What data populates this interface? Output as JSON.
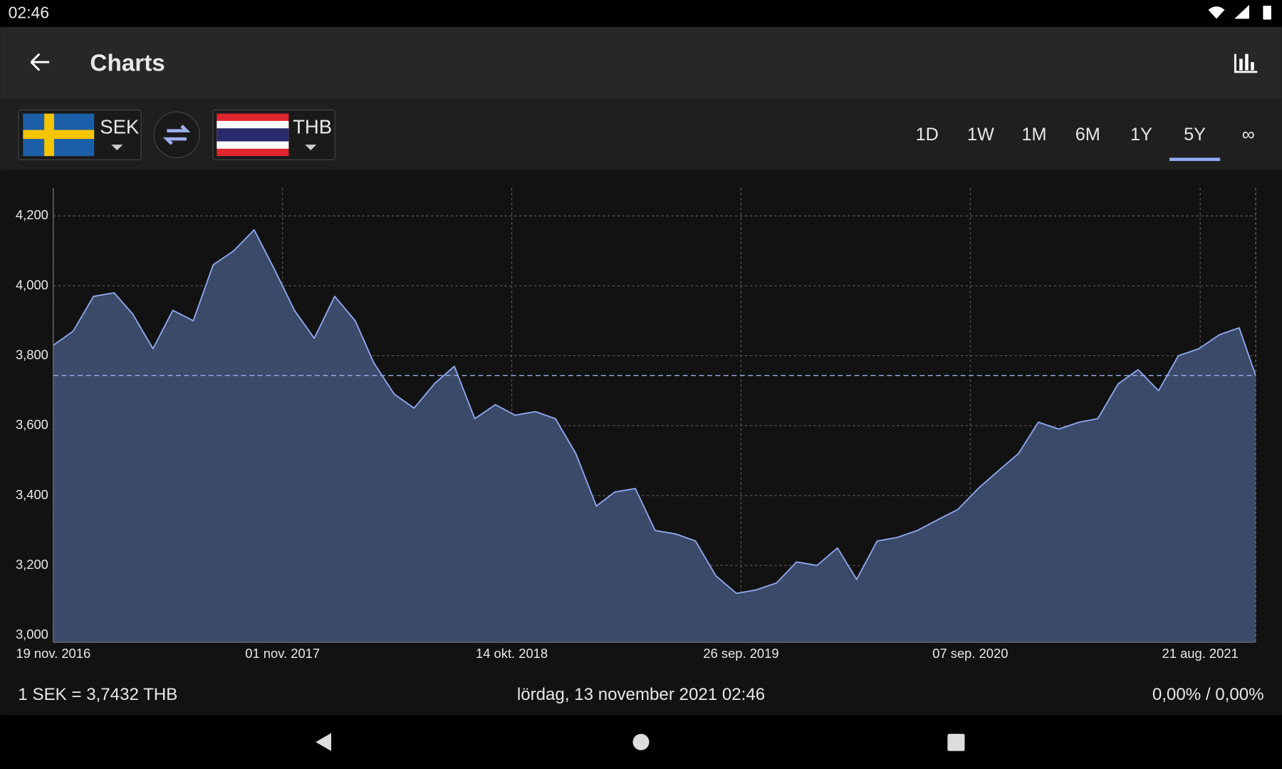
{
  "status": {
    "time": "02:46"
  },
  "header": {
    "title": "Charts"
  },
  "selector": {
    "from_currency": "SEK",
    "to_currency": "THB"
  },
  "tabs": [
    "1D",
    "1W",
    "1M",
    "6M",
    "1Y",
    "5Y",
    "∞"
  ],
  "active_tab": 5,
  "chart_data": {
    "type": "area",
    "x": [
      "2016-11-19",
      "2016-12-19",
      "2017-01-19",
      "2017-02-19",
      "2017-03-19",
      "2017-04-19",
      "2017-05-19",
      "2017-06-19",
      "2017-07-19",
      "2017-08-19",
      "2017-09-19",
      "2017-10-19",
      "2017-11-19",
      "2017-12-19",
      "2018-01-19",
      "2018-02-19",
      "2018-03-19",
      "2018-04-19",
      "2018-05-19",
      "2018-06-19",
      "2018-07-19",
      "2018-08-19",
      "2018-09-19",
      "2018-10-19",
      "2018-11-19",
      "2018-12-19",
      "2019-01-19",
      "2019-02-19",
      "2019-03-19",
      "2019-04-19",
      "2019-05-19",
      "2019-06-19",
      "2019-07-19",
      "2019-08-19",
      "2019-09-19",
      "2019-10-19",
      "2019-11-19",
      "2019-12-19",
      "2020-01-19",
      "2020-02-19",
      "2020-03-19",
      "2020-04-19",
      "2020-05-19",
      "2020-06-19",
      "2020-07-19",
      "2020-08-19",
      "2020-09-19",
      "2020-10-19",
      "2020-11-19",
      "2020-12-19",
      "2021-01-19",
      "2021-02-19",
      "2021-03-19",
      "2021-04-19",
      "2021-05-19",
      "2021-06-19",
      "2021-07-19",
      "2021-08-19",
      "2021-09-19",
      "2021-10-19",
      "2021-11-13"
    ],
    "series": [
      {
        "name": "SEK/THB",
        "color": "#8fa8f0",
        "fill": "#3b4a68",
        "values": [
          3.83,
          3.87,
          3.97,
          3.98,
          3.92,
          3.82,
          3.93,
          3.9,
          4.06,
          4.1,
          4.16,
          4.05,
          3.93,
          3.85,
          3.97,
          3.9,
          3.78,
          3.69,
          3.65,
          3.72,
          3.77,
          3.62,
          3.66,
          3.63,
          3.64,
          3.62,
          3.52,
          3.37,
          3.41,
          3.42,
          3.3,
          3.29,
          3.27,
          3.17,
          3.12,
          3.13,
          3.15,
          3.21,
          3.2,
          3.25,
          3.16,
          3.27,
          3.28,
          3.3,
          3.33,
          3.36,
          3.42,
          3.47,
          3.52,
          3.61,
          3.59,
          3.61,
          3.62,
          3.72,
          3.76,
          3.7,
          3.8,
          3.82,
          3.86,
          3.88,
          3.7432
        ]
      }
    ],
    "reference_line": 3.7432,
    "xlim": [
      "2016-11-19",
      "2021-11-13"
    ],
    "xticks": [
      {
        "value": "2016-11-19",
        "label": "19 nov. 2016"
      },
      {
        "value": "2017-11-01",
        "label": "01 nov. 2017"
      },
      {
        "value": "2018-10-14",
        "label": "14 okt. 2018"
      },
      {
        "value": "2019-09-26",
        "label": "26 sep. 2019"
      },
      {
        "value": "2020-09-07",
        "label": "07 sep. 2020"
      },
      {
        "value": "2021-08-21",
        "label": "21 aug. 2021"
      }
    ],
    "ylim": [
      2.98,
      4.28
    ],
    "yticks": [
      {
        "value": 3.0,
        "label": "3,000"
      },
      {
        "value": 3.2,
        "label": "3,200"
      },
      {
        "value": 3.4,
        "label": "3,400"
      },
      {
        "value": 3.6,
        "label": "3,600"
      },
      {
        "value": 3.8,
        "label": "3,800"
      },
      {
        "value": 4.0,
        "label": "4,000"
      },
      {
        "value": 4.2,
        "label": "4,200"
      }
    ],
    "grid": true
  },
  "footer": {
    "rate": "1 SEK = 3,7432 THB",
    "datetime": "lördag, 13 november 2021 02:46",
    "change": "0,00% / 0,00%"
  }
}
